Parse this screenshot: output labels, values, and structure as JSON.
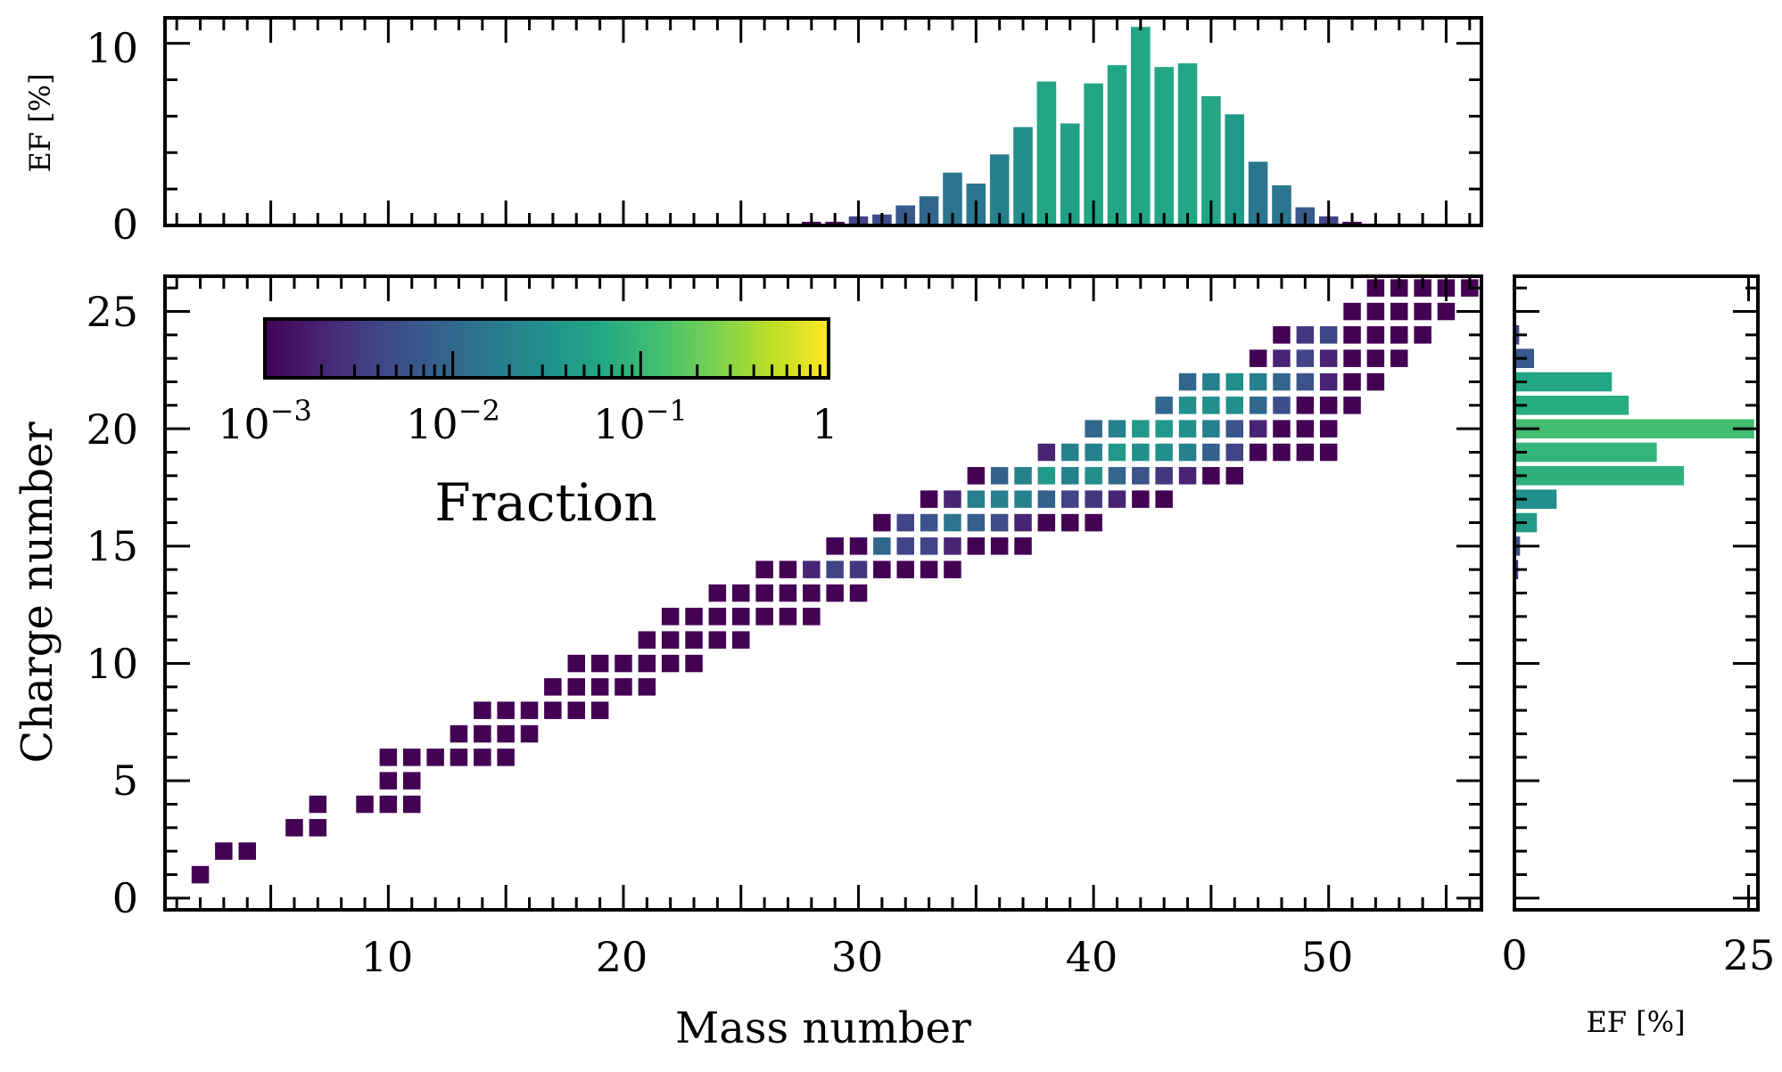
{
  "chart_data": {
    "type": "heatmap",
    "title": "",
    "xlabel": "Mass number",
    "ylabel": "Charge number",
    "xlim": [
      0.5,
      56.5
    ],
    "ylim": [
      -0.5,
      26.5
    ],
    "x_ticks": [
      "10",
      "20",
      "30",
      "40",
      "50"
    ],
    "y_ticks": [
      "0",
      "5",
      "10",
      "15",
      "20",
      "25"
    ],
    "colorbar": {
      "label": "Fraction",
      "scale": "log",
      "range": [
        0.001,
        1
      ],
      "colormap": "viridis",
      "ticks": [
        {
          "value": 0.001,
          "label": "10",
          "exp": "−3"
        },
        {
          "value": 0.01,
          "label": "10",
          "exp": "−2"
        },
        {
          "value": 0.1,
          "label": "10",
          "exp": "−1"
        },
        {
          "value": 1,
          "label": "1",
          "exp": ""
        }
      ]
    },
    "grid": false,
    "cells": [
      {
        "A": 2,
        "Z": 1,
        "f": 0.001
      },
      {
        "A": 3,
        "Z": 2,
        "f": 0.001
      },
      {
        "A": 4,
        "Z": 2,
        "f": 0.001
      },
      {
        "A": 6,
        "Z": 3,
        "f": 0.001
      },
      {
        "A": 7,
        "Z": 3,
        "f": 0.001
      },
      {
        "A": 7,
        "Z": 4,
        "f": 0.001
      },
      {
        "A": 9,
        "Z": 4,
        "f": 0.001
      },
      {
        "A": 10,
        "Z": 4,
        "f": 0.001
      },
      {
        "A": 11,
        "Z": 4,
        "f": 0.001
      },
      {
        "A": 10,
        "Z": 5,
        "f": 0.001
      },
      {
        "A": 11,
        "Z": 5,
        "f": 0.001
      },
      {
        "A": 10,
        "Z": 6,
        "f": 0.001
      },
      {
        "A": 11,
        "Z": 6,
        "f": 0.001
      },
      {
        "A": 12,
        "Z": 6,
        "f": 0.001
      },
      {
        "A": 13,
        "Z": 6,
        "f": 0.001
      },
      {
        "A": 14,
        "Z": 6,
        "f": 0.001
      },
      {
        "A": 15,
        "Z": 6,
        "f": 0.001
      },
      {
        "A": 13,
        "Z": 7,
        "f": 0.001
      },
      {
        "A": 14,
        "Z": 7,
        "f": 0.001
      },
      {
        "A": 15,
        "Z": 7,
        "f": 0.001
      },
      {
        "A": 16,
        "Z": 7,
        "f": 0.001
      },
      {
        "A": 14,
        "Z": 8,
        "f": 0.001
      },
      {
        "A": 15,
        "Z": 8,
        "f": 0.001
      },
      {
        "A": 16,
        "Z": 8,
        "f": 0.001
      },
      {
        "A": 17,
        "Z": 8,
        "f": 0.001
      },
      {
        "A": 18,
        "Z": 8,
        "f": 0.001
      },
      {
        "A": 19,
        "Z": 8,
        "f": 0.001
      },
      {
        "A": 17,
        "Z": 9,
        "f": 0.001
      },
      {
        "A": 18,
        "Z": 9,
        "f": 0.001
      },
      {
        "A": 19,
        "Z": 9,
        "f": 0.001
      },
      {
        "A": 20,
        "Z": 9,
        "f": 0.001
      },
      {
        "A": 21,
        "Z": 9,
        "f": 0.001
      },
      {
        "A": 18,
        "Z": 10,
        "f": 0.001
      },
      {
        "A": 19,
        "Z": 10,
        "f": 0.001
      },
      {
        "A": 20,
        "Z": 10,
        "f": 0.001
      },
      {
        "A": 21,
        "Z": 10,
        "f": 0.001
      },
      {
        "A": 22,
        "Z": 10,
        "f": 0.001
      },
      {
        "A": 23,
        "Z": 10,
        "f": 0.001
      },
      {
        "A": 21,
        "Z": 11,
        "f": 0.001
      },
      {
        "A": 22,
        "Z": 11,
        "f": 0.001
      },
      {
        "A": 23,
        "Z": 11,
        "f": 0.001
      },
      {
        "A": 24,
        "Z": 11,
        "f": 0.001
      },
      {
        "A": 25,
        "Z": 11,
        "f": 0.001
      },
      {
        "A": 22,
        "Z": 12,
        "f": 0.001
      },
      {
        "A": 23,
        "Z": 12,
        "f": 0.001
      },
      {
        "A": 24,
        "Z": 12,
        "f": 0.001
      },
      {
        "A": 25,
        "Z": 12,
        "f": 0.001
      },
      {
        "A": 26,
        "Z": 12,
        "f": 0.001
      },
      {
        "A": 27,
        "Z": 12,
        "f": 0.001
      },
      {
        "A": 28,
        "Z": 12,
        "f": 0.001
      },
      {
        "A": 24,
        "Z": 13,
        "f": 0.001
      },
      {
        "A": 25,
        "Z": 13,
        "f": 0.001
      },
      {
        "A": 26,
        "Z": 13,
        "f": 0.001
      },
      {
        "A": 27,
        "Z": 13,
        "f": 0.001
      },
      {
        "A": 28,
        "Z": 13,
        "f": 0.001
      },
      {
        "A": 29,
        "Z": 13,
        "f": 0.001
      },
      {
        "A": 30,
        "Z": 13,
        "f": 0.001
      },
      {
        "A": 26,
        "Z": 14,
        "f": 0.001
      },
      {
        "A": 27,
        "Z": 14,
        "f": 0.001
      },
      {
        "A": 28,
        "Z": 14,
        "f": 0.002
      },
      {
        "A": 29,
        "Z": 14,
        "f": 0.004
      },
      {
        "A": 30,
        "Z": 14,
        "f": 0.003
      },
      {
        "A": 31,
        "Z": 14,
        "f": 0.001
      },
      {
        "A": 32,
        "Z": 14,
        "f": 0.001
      },
      {
        "A": 33,
        "Z": 14,
        "f": 0.001
      },
      {
        "A": 34,
        "Z": 14,
        "f": 0.001
      },
      {
        "A": 29,
        "Z": 15,
        "f": 0.001
      },
      {
        "A": 30,
        "Z": 15,
        "f": 0.001
      },
      {
        "A": 31,
        "Z": 15,
        "f": 0.01
      },
      {
        "A": 32,
        "Z": 15,
        "f": 0.004
      },
      {
        "A": 33,
        "Z": 15,
        "f": 0.004
      },
      {
        "A": 34,
        "Z": 15,
        "f": 0.002
      },
      {
        "A": 35,
        "Z": 15,
        "f": 0.001
      },
      {
        "A": 36,
        "Z": 15,
        "f": 0.001
      },
      {
        "A": 37,
        "Z": 15,
        "f": 0.001
      },
      {
        "A": 31,
        "Z": 16,
        "f": 0.001
      },
      {
        "A": 32,
        "Z": 16,
        "f": 0.004
      },
      {
        "A": 33,
        "Z": 16,
        "f": 0.006
      },
      {
        "A": 34,
        "Z": 16,
        "f": 0.015
      },
      {
        "A": 35,
        "Z": 16,
        "f": 0.008
      },
      {
        "A": 36,
        "Z": 16,
        "f": 0.005
      },
      {
        "A": 37,
        "Z": 16,
        "f": 0.002
      },
      {
        "A": 38,
        "Z": 16,
        "f": 0.001
      },
      {
        "A": 39,
        "Z": 16,
        "f": 0.001
      },
      {
        "A": 40,
        "Z": 16,
        "f": 0.001
      },
      {
        "A": 33,
        "Z": 17,
        "f": 0.001
      },
      {
        "A": 34,
        "Z": 17,
        "f": 0.002
      },
      {
        "A": 35,
        "Z": 17,
        "f": 0.02
      },
      {
        "A": 36,
        "Z": 17,
        "f": 0.02
      },
      {
        "A": 37,
        "Z": 17,
        "f": 0.02
      },
      {
        "A": 38,
        "Z": 17,
        "f": 0.008
      },
      {
        "A": 39,
        "Z": 17,
        "f": 0.004
      },
      {
        "A": 40,
        "Z": 17,
        "f": 0.003
      },
      {
        "A": 41,
        "Z": 17,
        "f": 0.002
      },
      {
        "A": 42,
        "Z": 17,
        "f": 0.001
      },
      {
        "A": 43,
        "Z": 17,
        "f": 0.001
      },
      {
        "A": 35,
        "Z": 18,
        "f": 0.001
      },
      {
        "A": 36,
        "Z": 18,
        "f": 0.008
      },
      {
        "A": 37,
        "Z": 18,
        "f": 0.02
      },
      {
        "A": 38,
        "Z": 18,
        "f": 0.04
      },
      {
        "A": 39,
        "Z": 18,
        "f": 0.02
      },
      {
        "A": 40,
        "Z": 18,
        "f": 0.03
      },
      {
        "A": 41,
        "Z": 18,
        "f": 0.01
      },
      {
        "A": 42,
        "Z": 18,
        "f": 0.006
      },
      {
        "A": 43,
        "Z": 18,
        "f": 0.003
      },
      {
        "A": 44,
        "Z": 18,
        "f": 0.002
      },
      {
        "A": 45,
        "Z": 18,
        "f": 0.001
      },
      {
        "A": 46,
        "Z": 18,
        "f": 0.001
      },
      {
        "A": 38,
        "Z": 19,
        "f": 0.002
      },
      {
        "A": 39,
        "Z": 19,
        "f": 0.02
      },
      {
        "A": 40,
        "Z": 19,
        "f": 0.02
      },
      {
        "A": 41,
        "Z": 19,
        "f": 0.04
      },
      {
        "A": 42,
        "Z": 19,
        "f": 0.03
      },
      {
        "A": 43,
        "Z": 19,
        "f": 0.03
      },
      {
        "A": 44,
        "Z": 19,
        "f": 0.02
      },
      {
        "A": 45,
        "Z": 19,
        "f": 0.008
      },
      {
        "A": 46,
        "Z": 19,
        "f": 0.004
      },
      {
        "A": 47,
        "Z": 19,
        "f": 0.001
      },
      {
        "A": 48,
        "Z": 19,
        "f": 0.001
      },
      {
        "A": 49,
        "Z": 19,
        "f": 0.001
      },
      {
        "A": 50,
        "Z": 19,
        "f": 0.001
      },
      {
        "A": 40,
        "Z": 20,
        "f": 0.01
      },
      {
        "A": 41,
        "Z": 20,
        "f": 0.02
      },
      {
        "A": 42,
        "Z": 20,
        "f": 0.04
      },
      {
        "A": 43,
        "Z": 20,
        "f": 0.04
      },
      {
        "A": 44,
        "Z": 20,
        "f": 0.03
      },
      {
        "A": 45,
        "Z": 20,
        "f": 0.02
      },
      {
        "A": 46,
        "Z": 20,
        "f": 0.006
      },
      {
        "A": 47,
        "Z": 20,
        "f": 0.002
      },
      {
        "A": 48,
        "Z": 20,
        "f": 0.001
      },
      {
        "A": 49,
        "Z": 20,
        "f": 0.001
      },
      {
        "A": 50,
        "Z": 20,
        "f": 0.001
      },
      {
        "A": 43,
        "Z": 21,
        "f": 0.01
      },
      {
        "A": 44,
        "Z": 21,
        "f": 0.03
      },
      {
        "A": 45,
        "Z": 21,
        "f": 0.03
      },
      {
        "A": 46,
        "Z": 21,
        "f": 0.03
      },
      {
        "A": 47,
        "Z": 21,
        "f": 0.01
      },
      {
        "A": 48,
        "Z": 21,
        "f": 0.005
      },
      {
        "A": 49,
        "Z": 21,
        "f": 0.001
      },
      {
        "A": 50,
        "Z": 21,
        "f": 0.001
      },
      {
        "A": 51,
        "Z": 21,
        "f": 0.001
      },
      {
        "A": 44,
        "Z": 22,
        "f": 0.01
      },
      {
        "A": 45,
        "Z": 22,
        "f": 0.02
      },
      {
        "A": 46,
        "Z": 22,
        "f": 0.03
      },
      {
        "A": 47,
        "Z": 22,
        "f": 0.02
      },
      {
        "A": 48,
        "Z": 22,
        "f": 0.01
      },
      {
        "A": 49,
        "Z": 22,
        "f": 0.006
      },
      {
        "A": 50,
        "Z": 22,
        "f": 0.002
      },
      {
        "A": 51,
        "Z": 22,
        "f": 0.001
      },
      {
        "A": 52,
        "Z": 22,
        "f": 0.001
      },
      {
        "A": 47,
        "Z": 23,
        "f": 0.001
      },
      {
        "A": 48,
        "Z": 23,
        "f": 0.002
      },
      {
        "A": 49,
        "Z": 23,
        "f": 0.004
      },
      {
        "A": 50,
        "Z": 23,
        "f": 0.002
      },
      {
        "A": 51,
        "Z": 23,
        "f": 0.001
      },
      {
        "A": 52,
        "Z": 23,
        "f": 0.001
      },
      {
        "A": 53,
        "Z": 23,
        "f": 0.001
      },
      {
        "A": 48,
        "Z": 24,
        "f": 0.001
      },
      {
        "A": 49,
        "Z": 24,
        "f": 0.003
      },
      {
        "A": 50,
        "Z": 24,
        "f": 0.004
      },
      {
        "A": 51,
        "Z": 24,
        "f": 0.001
      },
      {
        "A": 52,
        "Z": 24,
        "f": 0.001
      },
      {
        "A": 53,
        "Z": 24,
        "f": 0.001
      },
      {
        "A": 54,
        "Z": 24,
        "f": 0.001
      },
      {
        "A": 51,
        "Z": 25,
        "f": 0.001
      },
      {
        "A": 52,
        "Z": 25,
        "f": 0.001
      },
      {
        "A": 53,
        "Z": 25,
        "f": 0.001
      },
      {
        "A": 54,
        "Z": 25,
        "f": 0.001
      },
      {
        "A": 55,
        "Z": 25,
        "f": 0.001
      },
      {
        "A": 52,
        "Z": 26,
        "f": 0.001
      },
      {
        "A": 53,
        "Z": 26,
        "f": 0.001
      },
      {
        "A": 54,
        "Z": 26,
        "f": 0.001
      },
      {
        "A": 55,
        "Z": 26,
        "f": 0.001
      },
      {
        "A": 56,
        "Z": 26,
        "f": 0.001
      }
    ],
    "top_histogram": {
      "type": "bar",
      "ylabel": "EF [%]",
      "ylim": [
        0,
        11.4
      ],
      "y_ticks": [
        "0",
        "10"
      ],
      "x": [
        28,
        29,
        30,
        31,
        32,
        33,
        34,
        35,
        36,
        37,
        38,
        39,
        40,
        41,
        42,
        43,
        44,
        45,
        46,
        47,
        48,
        49,
        50,
        51
      ],
      "values": [
        0.2,
        0.2,
        0.5,
        0.6,
        1.1,
        1.6,
        2.9,
        2.3,
        3.9,
        5.4,
        7.9,
        5.6,
        7.8,
        8.8,
        10.9,
        8.7,
        8.9,
        7.1,
        6.1,
        3.5,
        2.2,
        1.0,
        0.5,
        0.2
      ],
      "f": [
        0.001,
        0.001,
        0.004,
        0.005,
        0.007,
        0.01,
        0.015,
        0.015,
        0.02,
        0.03,
        0.06,
        0.05,
        0.06,
        0.06,
        0.06,
        0.06,
        0.06,
        0.06,
        0.04,
        0.015,
        0.015,
        0.007,
        0.004,
        0.001
      ]
    },
    "right_histogram": {
      "type": "bar",
      "orientation": "horizontal",
      "xlabel": "EF [%]",
      "xlim": [
        0,
        25
      ],
      "x_ticks": [
        "0",
        "25"
      ],
      "y": [
        14,
        15,
        16,
        17,
        18,
        19,
        20,
        21,
        22,
        23,
        24
      ],
      "values": [
        0.4,
        0.6,
        2.4,
        4.5,
        18.1,
        15.2,
        25.6,
        12.2,
        10.4,
        2.1,
        0.5
      ],
      "f": [
        0.003,
        0.006,
        0.04,
        0.03,
        0.08,
        0.09,
        0.12,
        0.07,
        0.06,
        0.007,
        0.004
      ]
    }
  }
}
